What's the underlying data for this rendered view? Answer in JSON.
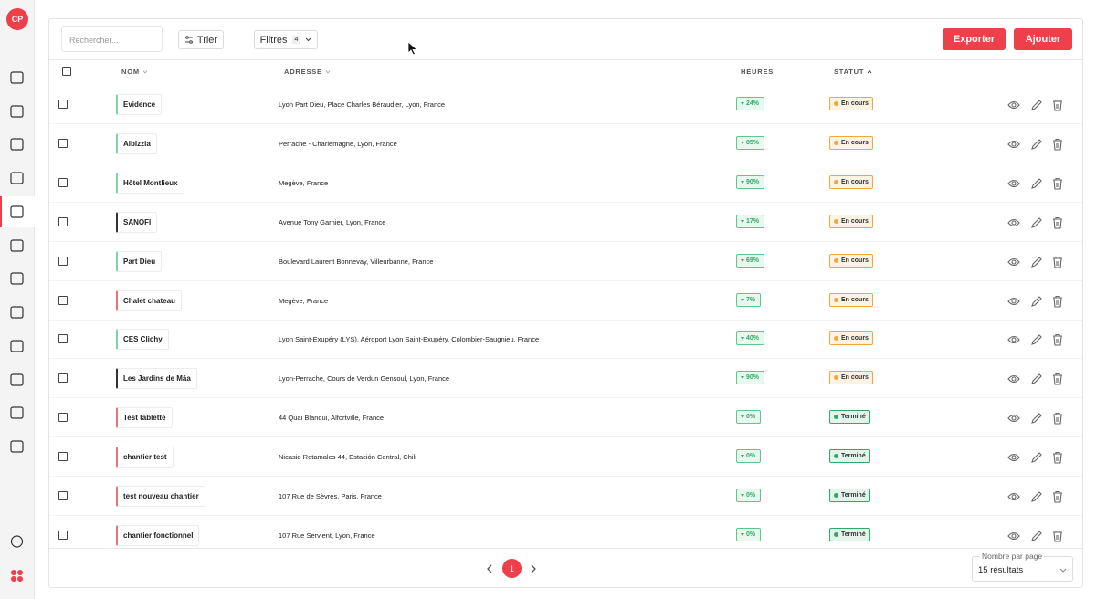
{
  "sidebar": {
    "avatar": "CP"
  },
  "toolbar": {
    "search_placeholder": "Rechercher...",
    "sort": "Trier",
    "filters": "Filtres",
    "filters_count": 4,
    "export": "Exporter",
    "add": "Ajouter"
  },
  "table": {
    "columns": [
      "NOM",
      "ADRESSE",
      "HEURES",
      "STATUT"
    ],
    "rows": [
      {
        "name": "Evidence",
        "accent": "#7fd3a6",
        "address": "Lyon Part Dieu, Place Charles Béraudier, Lyon, France",
        "hours": "24%",
        "status": "En cours",
        "status_color": "#f0a83a"
      },
      {
        "name": "Albizzia",
        "accent": "#7fd3a6",
        "address": "Perrache - Charlemagne, Lyon, France",
        "hours": "85%",
        "status": "En cours",
        "status_color": "#f0a83a"
      },
      {
        "name": "Hôtel Montlieux",
        "accent": "#7fd3a6",
        "address": "Megève, France",
        "hours": "90%",
        "status": "En cours",
        "status_color": "#f0a83a"
      },
      {
        "name": "SANOFI",
        "accent": "#333333",
        "address": "Avenue Tony Garnier, Lyon, France",
        "hours": "17%",
        "status": "En cours",
        "status_color": "#f0a83a"
      },
      {
        "name": "Part Dieu",
        "accent": "#7fd3a6",
        "address": "Boulevard Laurent Bonnevay, Villeurbanne, France",
        "hours": "69%",
        "status": "En cours",
        "status_color": "#f0a83a"
      },
      {
        "name": "Chalet chateau",
        "accent": "#e8737b",
        "address": "Megève, France",
        "hours": "7%",
        "status": "En cours",
        "status_color": "#f0a83a"
      },
      {
        "name": "CES Clichy",
        "accent": "#7fd3a6",
        "address": "Lyon Saint-Exupéry (LYS), Aéroport Lyon Saint-Exupéry, Colombier-Saugnieu, France",
        "hours": "40%",
        "status": "En cours",
        "status_color": "#f0a83a"
      },
      {
        "name": "Les Jardins de Máa",
        "accent": "#333333",
        "address": "Lyon-Perrache, Cours de Verdun Gensoul, Lyon, France",
        "hours": "90%",
        "status": "En cours",
        "status_color": "#f0a83a"
      },
      {
        "name": "Test tablette",
        "accent": "#e8737b",
        "address": "44 Quai Blanqui, Alfortville, France",
        "hours": "0%",
        "status": "Terminé",
        "status_color": "#2eaa66"
      },
      {
        "name": "chantier test",
        "accent": "#e8737b",
        "address": "Nicasio Retamales 44, Estación Central, Chili",
        "hours": "0%",
        "status": "Terminé",
        "status_color": "#2eaa66"
      },
      {
        "name": "test nouveau chantier",
        "accent": "#e8737b",
        "address": "107 Rue de Sèvres, Paris, France",
        "hours": "0%",
        "status": "Terminé",
        "status_color": "#2eaa66"
      },
      {
        "name": "chantier fonctionnel",
        "accent": "#e8737b",
        "address": "107 Rue Servient, Lyon, France",
        "hours": "0%",
        "status": "Terminé",
        "status_color": "#2eaa66"
      }
    ]
  },
  "pagination": {
    "page": 1,
    "page_size_label": "Nombre par page",
    "page_size": "15 résultats"
  }
}
